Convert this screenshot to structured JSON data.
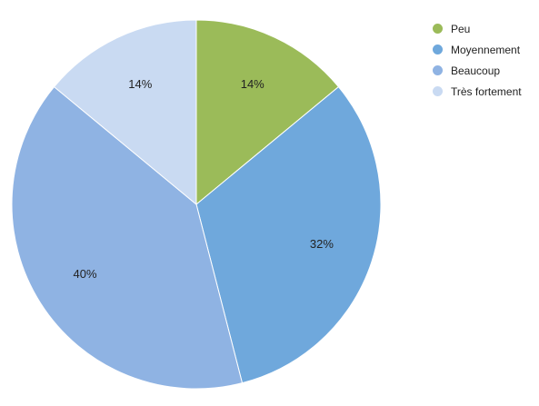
{
  "chart_data": {
    "type": "pie",
    "title": "",
    "start_angle_deg": 0,
    "direction": "clockwise",
    "legend_position": "top-right",
    "slices": [
      {
        "name": "Peu",
        "value": 14,
        "label": "14%",
        "color": "#9bbb59"
      },
      {
        "name": "Moyennement",
        "value": 32,
        "label": "32%",
        "color": "#6fa8dc"
      },
      {
        "name": "Beaucoup",
        "value": 40,
        "label": "40%",
        "color": "#8fb3e3"
      },
      {
        "name": "Très fortement",
        "value": 14,
        "label": "14%",
        "color": "#c9daf2"
      }
    ]
  }
}
